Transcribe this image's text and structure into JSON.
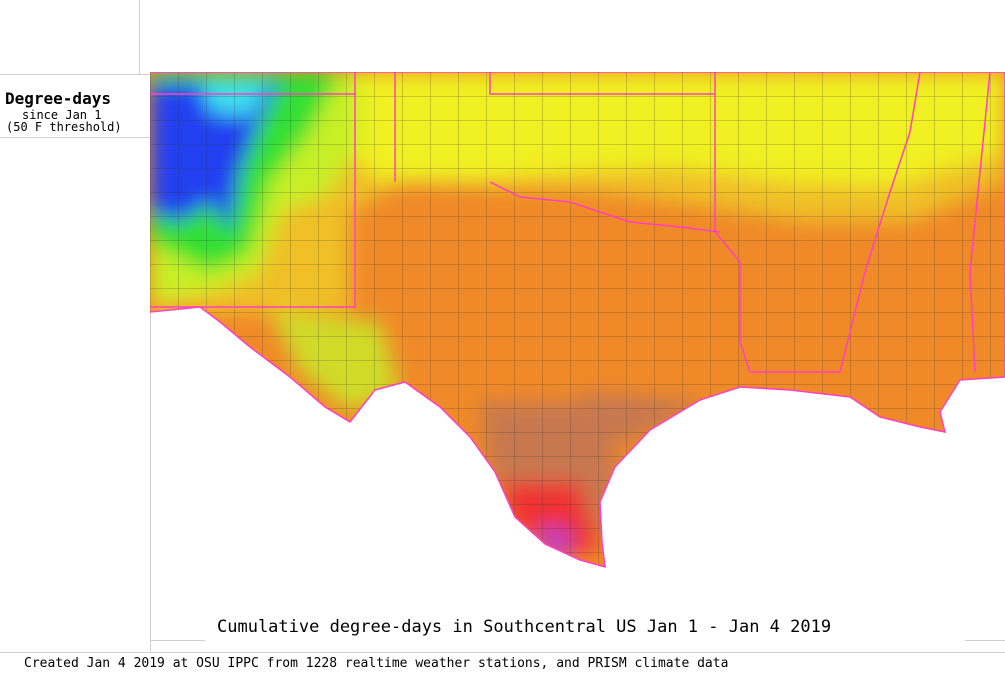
{
  "legend": {
    "title": "Degree-days",
    "subtitle": "since Jan 1",
    "threshold": "(50 F threshold)"
  },
  "map": {
    "region": "Southcentral US",
    "colors": {
      "low_blue": "#2040f0",
      "cyan": "#40e0f0",
      "green": "#30e030",
      "yellow_green": "#c8f028",
      "yellow": "#f0f020",
      "light_orange": "#f0b828",
      "orange": "#f08a28",
      "brown": "#c87850",
      "red": "#f03030",
      "magenta": "#c040c0",
      "state_border": "#ff40c0",
      "county_border": "#303030"
    }
  },
  "title": "Cumulative degree-days in Southcentral US Jan 1 - Jan 4 2019",
  "footer": "Created Jan 4 2019 at OSU IPPC from 1228 realtime weather stations, and PRISM climate data"
}
